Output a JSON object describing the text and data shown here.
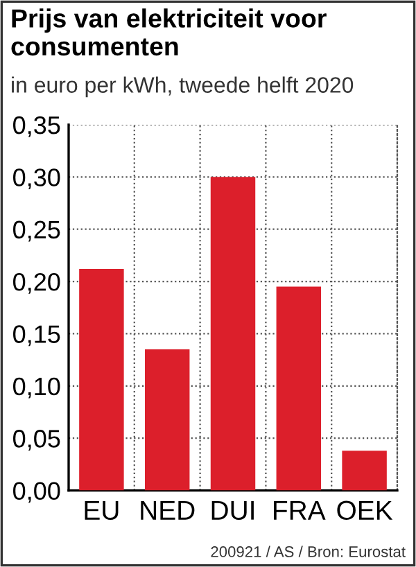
{
  "chart_data": {
    "type": "bar",
    "title": "Prijs van elektriciteit voor consumenten",
    "subtitle": "in euro per kWh, tweede helft 2020",
    "categories": [
      "EU",
      "NED",
      "DUI",
      "FRA",
      "OEK"
    ],
    "values": [
      0.212,
      0.135,
      0.3,
      0.195,
      0.038
    ],
    "color": "#dc1f2b",
    "ylim": [
      0,
      0.35
    ],
    "yticks": [
      {
        "value": 0,
        "label": "0,00"
      },
      {
        "value": 0.05,
        "label": "0,05"
      },
      {
        "value": 0.1,
        "label": "0,10"
      },
      {
        "value": 0.15,
        "label": "0,15"
      },
      {
        "value": 0.2,
        "label": "0,20"
      },
      {
        "value": 0.25,
        "label": "0,25"
      },
      {
        "value": 0.3,
        "label": "0,30"
      },
      {
        "value": 0.35,
        "label": "0,35"
      }
    ],
    "grid": true,
    "annotations": [
      "200921 / AS / Bron: Eurostat"
    ]
  }
}
